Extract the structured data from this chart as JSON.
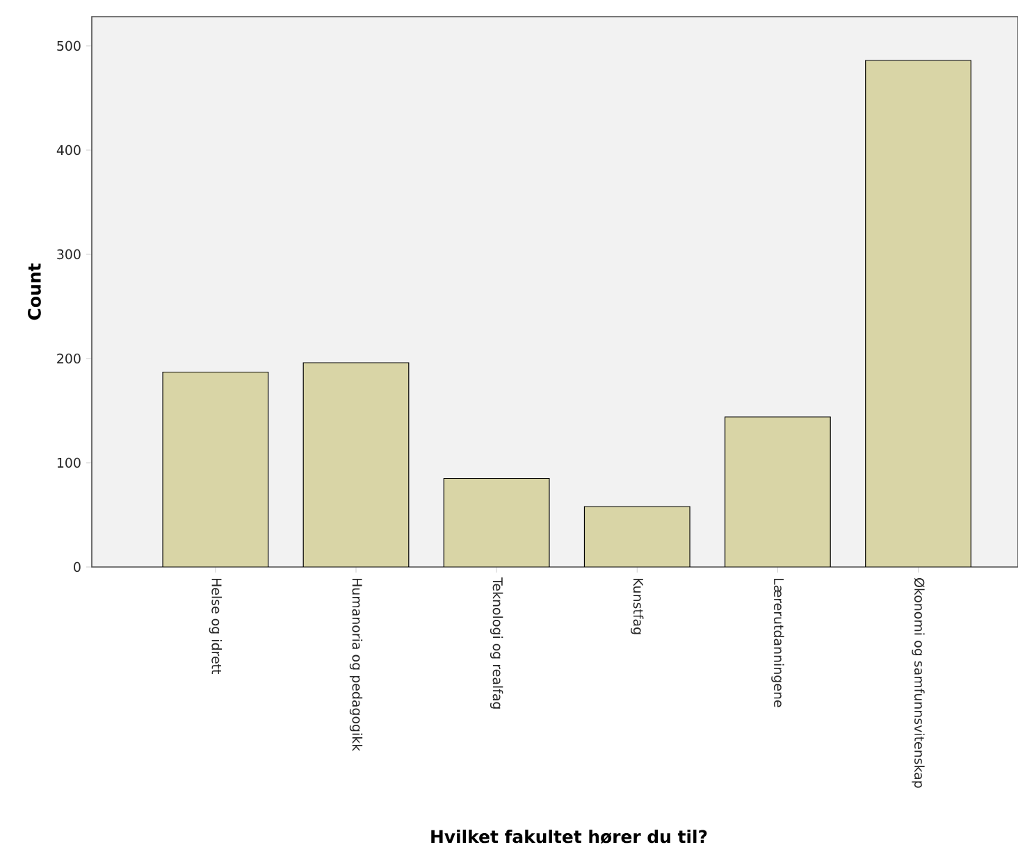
{
  "chart_data": {
    "type": "bar",
    "xlabel": "Hvilket fakultet hører du til?",
    "ylabel": "Count",
    "categories": [
      "Helse og idrett",
      "Humanoria og pedagogikk",
      "Teknologi og realfag",
      "Kunstfag",
      "Lærerutdanningene",
      "Økonomi og samfunnsvitenskap"
    ],
    "values": [
      187,
      196,
      85,
      58,
      144,
      486
    ],
    "color": "#d9d5a6",
    "ylim": [
      0,
      528
    ],
    "yticks": [
      0,
      100,
      200,
      300,
      400,
      500
    ]
  }
}
